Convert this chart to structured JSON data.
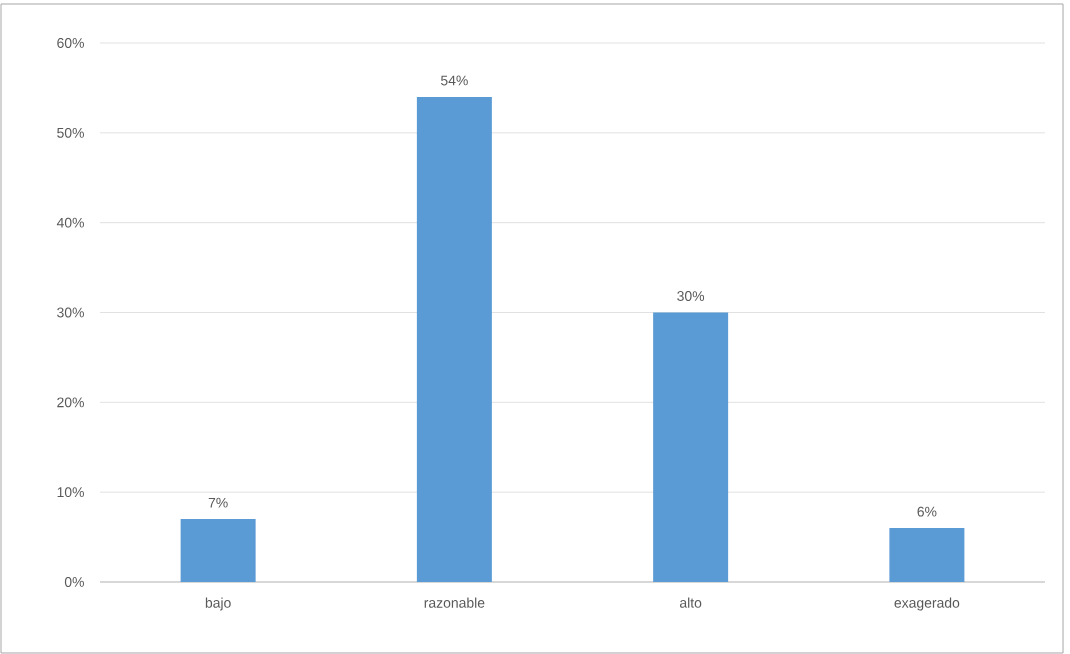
{
  "chart_data": {
    "type": "bar",
    "categories": [
      "bajo",
      "razonable",
      "alto",
      "exagerado"
    ],
    "values": [
      7,
      54,
      30,
      6
    ],
    "value_labels": [
      "7%",
      "54%",
      "30%",
      "6%"
    ],
    "color": "#5b9bd5",
    "ylim": [
      0,
      60
    ],
    "yticks": [
      {
        "value": 0,
        "label": "0%"
      },
      {
        "value": 10,
        "label": "10%"
      },
      {
        "value": 20,
        "label": "20%"
      },
      {
        "value": 30,
        "label": "30%"
      },
      {
        "value": 40,
        "label": "40%"
      },
      {
        "value": 50,
        "label": "50%"
      },
      {
        "value": 60,
        "label": "60%"
      }
    ],
    "grid": "y"
  }
}
